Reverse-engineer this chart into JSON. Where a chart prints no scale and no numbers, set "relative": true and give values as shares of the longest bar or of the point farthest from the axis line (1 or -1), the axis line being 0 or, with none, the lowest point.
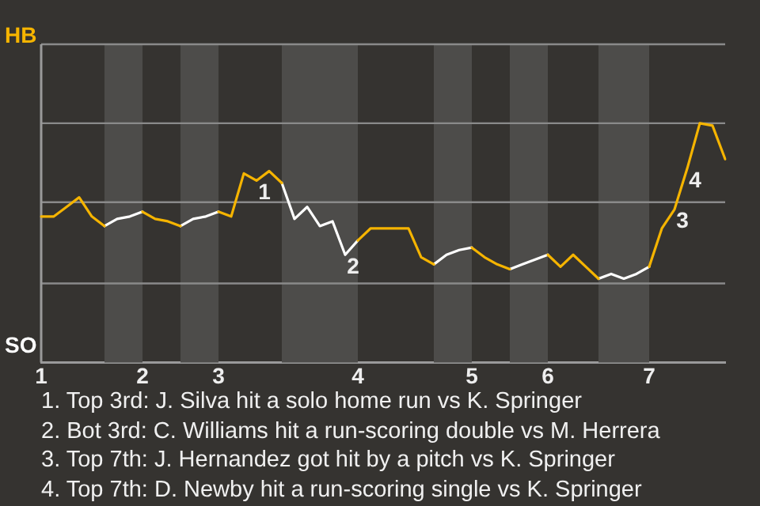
{
  "chart_data": {
    "type": "line",
    "categories": [
      "1",
      null,
      null,
      null,
      null,
      null,
      null,
      null,
      "2",
      null,
      null,
      null,
      null,
      null,
      "3",
      null,
      null,
      null,
      null,
      null,
      null,
      null,
      null,
      null,
      null,
      "4",
      null,
      null,
      null,
      null,
      null,
      null,
      null,
      null,
      "5",
      null,
      null,
      null,
      null,
      null,
      "6",
      null,
      null,
      null,
      null,
      null,
      null,
      null,
      "7",
      null,
      null,
      null,
      null,
      null,
      null
    ],
    "relative": true,
    "series": [
      {
        "color": "#f5b400",
        "values": [
          0.61,
          0.61,
          0.65,
          0.69,
          0.61,
          0.57,
          null,
          null,
          0.63,
          0.6,
          0.59,
          0.57,
          null,
          null,
          0.63,
          0.61,
          0.79,
          0.76,
          0.8,
          0.75,
          null,
          null,
          null,
          null,
          null,
          0.51,
          0.56,
          0.56,
          0.56,
          0.56,
          0.44,
          0.41,
          null,
          null,
          0.48,
          0.44,
          0.41,
          0.39,
          null,
          null,
          0.45,
          0.4,
          0.45,
          0.4,
          0.35,
          null,
          null,
          null,
          0.4,
          0.56,
          0.64,
          0.81,
          1,
          0.99,
          0.85
        ]
      },
      {
        "color": "#ffffff",
        "values": [
          null,
          null,
          null,
          null,
          null,
          0.57,
          0.6,
          0.61,
          0.63,
          null,
          null,
          0.57,
          0.6,
          0.61,
          0.63,
          null,
          null,
          null,
          null,
          0.75,
          0.6,
          0.65,
          0.57,
          0.59,
          0.45,
          0.51,
          null,
          null,
          null,
          null,
          null,
          0.41,
          0.45,
          0.47,
          0.48,
          null,
          null,
          0.39,
          0.41,
          0.43,
          0.45,
          null,
          null,
          null,
          0.35,
          0.37,
          0.35,
          0.37,
          0.4,
          null,
          null,
          null,
          null,
          null,
          null
        ]
      }
    ],
    "ref_lines": [
      {
        "axis": "y",
        "value": 0.33,
        "color": "#8a8a8a"
      },
      {
        "axis": "y",
        "value": 0.67,
        "color": "#8a8a8a"
      },
      {
        "axis": "y",
        "value": 1,
        "color": "#8a8a8a"
      },
      {
        "axis": "y",
        "value": 1.33,
        "color": "#8a8a8a"
      }
    ],
    "legend": false,
    "marker": "none",
    "line_style": "solid",
    "annotations": [
      {
        "text": "1",
        "y": 0.76
      },
      {
        "text": "2",
        "y": 0.45
      },
      {
        "text": "3",
        "y": 0.64
      },
      {
        "text": "4",
        "y": 0.81
      },
      "HB",
      "SO",
      "1. Top 3rd: J. Silva hit a solo home run vs K. Springer",
      "2. Bot 3rd: C. Williams hit a run-scoring double vs M. Herrera",
      "3. Top 7th: J. Hernandez got hit by a pitch vs K. Springer",
      "4. Top 7th: D. Newby hit a run-scoring single vs K. Springer"
    ]
  }
}
